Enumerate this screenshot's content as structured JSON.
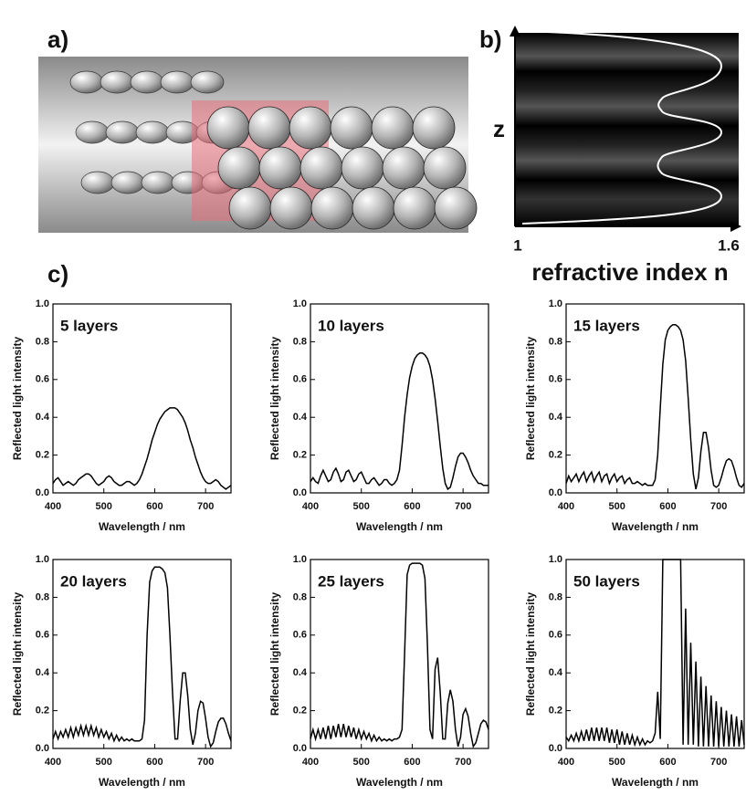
{
  "figure": {
    "panel_labels": [
      "a)",
      "b)",
      "c)"
    ],
    "index_profile": {
      "ylabel": "z",
      "xlabel": "refractive index n",
      "xticks": [
        1,
        1.6
      ]
    }
  },
  "chart_data": [
    {
      "type": "line",
      "annotation": "5 layers",
      "xlabel": "Wavelength / nm",
      "ylabel": "Reflected light intensity",
      "xlim": [
        400,
        750
      ],
      "ylim": [
        0,
        1
      ],
      "xticks": [
        400,
        500,
        600,
        700
      ],
      "yticks": [
        {
          "value": 0,
          "label": "0.0"
        },
        0.2,
        0.4,
        0.6,
        0.8,
        {
          "value": 1,
          "label": "1.0"
        }
      ],
      "color": "#000000",
      "x": [
        400,
        405,
        410,
        415,
        420,
        425,
        430,
        435,
        440,
        445,
        450,
        455,
        460,
        465,
        470,
        475,
        480,
        485,
        490,
        495,
        500,
        505,
        510,
        515,
        520,
        525,
        530,
        535,
        540,
        545,
        550,
        555,
        560,
        565,
        570,
        575,
        580,
        585,
        590,
        595,
        600,
        605,
        610,
        615,
        620,
        625,
        630,
        635,
        640,
        645,
        650,
        655,
        660,
        665,
        670,
        675,
        680,
        685,
        690,
        695,
        700,
        705,
        710,
        715,
        720,
        725,
        730,
        735,
        740,
        745,
        750
      ],
      "values": [
        0.05,
        0.07,
        0.08,
        0.06,
        0.04,
        0.05,
        0.06,
        0.05,
        0.04,
        0.05,
        0.07,
        0.08,
        0.09,
        0.1,
        0.1,
        0.09,
        0.07,
        0.05,
        0.04,
        0.05,
        0.06,
        0.08,
        0.09,
        0.08,
        0.06,
        0.05,
        0.04,
        0.04,
        0.05,
        0.06,
        0.06,
        0.05,
        0.04,
        0.05,
        0.07,
        0.1,
        0.14,
        0.18,
        0.23,
        0.28,
        0.32,
        0.36,
        0.39,
        0.41,
        0.43,
        0.44,
        0.45,
        0.45,
        0.45,
        0.44,
        0.42,
        0.4,
        0.37,
        0.33,
        0.28,
        0.24,
        0.19,
        0.15,
        0.11,
        0.08,
        0.06,
        0.05,
        0.05,
        0.06,
        0.07,
        0.06,
        0.04,
        0.03,
        0.02,
        0.03,
        0.04
      ]
    },
    {
      "type": "line",
      "annotation": "10 layers",
      "xlabel": "Wavelength / nm",
      "ylabel": "Reflected light intensity",
      "xlim": [
        400,
        750
      ],
      "ylim": [
        0,
        1
      ],
      "xticks": [
        400,
        500,
        600,
        700
      ],
      "yticks": [
        {
          "value": 0,
          "label": "0.0"
        },
        0.2,
        0.4,
        0.6,
        0.8,
        {
          "value": 1,
          "label": "1.0"
        }
      ],
      "color": "#000000",
      "x": [
        400,
        405,
        410,
        415,
        420,
        425,
        430,
        435,
        440,
        445,
        450,
        455,
        460,
        465,
        470,
        475,
        480,
        485,
        490,
        495,
        500,
        505,
        510,
        515,
        520,
        525,
        530,
        535,
        540,
        545,
        550,
        555,
        560,
        565,
        570,
        575,
        580,
        585,
        590,
        595,
        600,
        605,
        610,
        615,
        620,
        625,
        630,
        635,
        640,
        645,
        650,
        655,
        660,
        665,
        670,
        675,
        680,
        685,
        690,
        695,
        700,
        705,
        710,
        715,
        720,
        725,
        730,
        735,
        740,
        745,
        750
      ],
      "values": [
        0.06,
        0.08,
        0.06,
        0.05,
        0.09,
        0.12,
        0.09,
        0.06,
        0.07,
        0.11,
        0.13,
        0.1,
        0.06,
        0.07,
        0.11,
        0.12,
        0.09,
        0.06,
        0.07,
        0.1,
        0.11,
        0.08,
        0.05,
        0.05,
        0.07,
        0.08,
        0.06,
        0.04,
        0.05,
        0.07,
        0.07,
        0.05,
        0.04,
        0.05,
        0.07,
        0.12,
        0.25,
        0.4,
        0.52,
        0.61,
        0.67,
        0.71,
        0.73,
        0.74,
        0.74,
        0.73,
        0.71,
        0.67,
        0.6,
        0.5,
        0.38,
        0.25,
        0.13,
        0.05,
        0.02,
        0.03,
        0.08,
        0.14,
        0.19,
        0.21,
        0.21,
        0.19,
        0.16,
        0.12,
        0.09,
        0.07,
        0.05,
        0.05,
        0.04,
        0.04,
        0.04
      ]
    },
    {
      "type": "line",
      "annotation": "15 layers",
      "xlabel": "Wavelength / nm",
      "ylabel": "Reflected light intensity",
      "xlim": [
        400,
        750
      ],
      "ylim": [
        0,
        1
      ],
      "xticks": [
        400,
        500,
        600,
        700
      ],
      "yticks": [
        {
          "value": 0,
          "label": "0.0"
        },
        0.2,
        0.4,
        0.6,
        0.8,
        {
          "value": 1,
          "label": "1.0"
        }
      ],
      "color": "#000000",
      "x": [
        400,
        405,
        410,
        415,
        420,
        425,
        430,
        435,
        440,
        445,
        450,
        455,
        460,
        465,
        470,
        475,
        480,
        485,
        490,
        495,
        500,
        505,
        510,
        515,
        520,
        525,
        530,
        535,
        540,
        545,
        550,
        555,
        560,
        565,
        570,
        575,
        580,
        585,
        590,
        595,
        600,
        605,
        610,
        615,
        620,
        625,
        630,
        635,
        640,
        645,
        650,
        655,
        660,
        665,
        670,
        675,
        680,
        685,
        690,
        695,
        700,
        705,
        710,
        715,
        720,
        725,
        730,
        735,
        740,
        745,
        750
      ],
      "values": [
        0.05,
        0.09,
        0.06,
        0.08,
        0.1,
        0.06,
        0.09,
        0.11,
        0.06,
        0.09,
        0.11,
        0.06,
        0.09,
        0.11,
        0.06,
        0.09,
        0.1,
        0.05,
        0.08,
        0.1,
        0.06,
        0.08,
        0.09,
        0.05,
        0.07,
        0.08,
        0.05,
        0.05,
        0.06,
        0.05,
        0.04,
        0.05,
        0.04,
        0.04,
        0.04,
        0.07,
        0.2,
        0.45,
        0.68,
        0.81,
        0.86,
        0.88,
        0.89,
        0.89,
        0.88,
        0.86,
        0.81,
        0.7,
        0.5,
        0.28,
        0.1,
        0.02,
        0.08,
        0.22,
        0.32,
        0.32,
        0.24,
        0.12,
        0.04,
        0.03,
        0.04,
        0.08,
        0.13,
        0.17,
        0.18,
        0.17,
        0.13,
        0.08,
        0.04,
        0.03,
        0.05
      ]
    },
    {
      "type": "line",
      "annotation": "20 layers",
      "xlabel": "Wavelength / nm",
      "ylabel": "Reflected light intensity",
      "xlim": [
        400,
        750
      ],
      "ylim": [
        0,
        1
      ],
      "xticks": [
        400,
        500,
        600,
        700
      ],
      "yticks": [
        {
          "value": 0,
          "label": "0.0"
        },
        0.2,
        0.4,
        0.6,
        0.8,
        {
          "value": 1,
          "label": "1.0"
        }
      ],
      "color": "#000000",
      "x": [
        400,
        405,
        410,
        415,
        420,
        425,
        430,
        435,
        440,
        445,
        450,
        455,
        460,
        465,
        470,
        475,
        480,
        485,
        490,
        495,
        500,
        505,
        510,
        515,
        520,
        525,
        530,
        535,
        540,
        545,
        550,
        555,
        560,
        565,
        570,
        575,
        580,
        585,
        590,
        595,
        600,
        605,
        610,
        615,
        620,
        625,
        630,
        635,
        640,
        645,
        650,
        655,
        660,
        665,
        670,
        675,
        680,
        685,
        690,
        695,
        700,
        705,
        710,
        715,
        720,
        725,
        730,
        735,
        740,
        745,
        750
      ],
      "values": [
        0.05,
        0.09,
        0.05,
        0.09,
        0.06,
        0.1,
        0.06,
        0.11,
        0.06,
        0.11,
        0.07,
        0.12,
        0.07,
        0.12,
        0.07,
        0.12,
        0.07,
        0.11,
        0.06,
        0.1,
        0.06,
        0.09,
        0.05,
        0.08,
        0.04,
        0.07,
        0.04,
        0.06,
        0.04,
        0.05,
        0.04,
        0.05,
        0.04,
        0.04,
        0.04,
        0.05,
        0.15,
        0.6,
        0.88,
        0.94,
        0.96,
        0.96,
        0.96,
        0.95,
        0.93,
        0.85,
        0.6,
        0.3,
        0.05,
        0.05,
        0.25,
        0.4,
        0.4,
        0.28,
        0.1,
        0.02,
        0.08,
        0.2,
        0.25,
        0.24,
        0.16,
        0.06,
        0.01,
        0.03,
        0.09,
        0.14,
        0.16,
        0.16,
        0.13,
        0.08,
        0.04
      ]
    },
    {
      "type": "line",
      "annotation": "25 layers",
      "xlabel": "Wavelength / nm",
      "ylabel": "Reflected light intensity",
      "xlim": [
        400,
        750
      ],
      "ylim": [
        0,
        1
      ],
      "xticks": [
        400,
        500,
        600,
        700
      ],
      "yticks": [
        {
          "value": 0,
          "label": "0.0"
        },
        0.2,
        0.4,
        0.6,
        0.8,
        {
          "value": 1,
          "label": "1.0"
        }
      ],
      "color": "#000000",
      "x": [
        400,
        405,
        410,
        415,
        420,
        425,
        430,
        435,
        440,
        445,
        450,
        455,
        460,
        465,
        470,
        475,
        480,
        485,
        490,
        495,
        500,
        505,
        510,
        515,
        520,
        525,
        530,
        535,
        540,
        545,
        550,
        555,
        560,
        565,
        570,
        575,
        580,
        585,
        590,
        595,
        600,
        605,
        610,
        615,
        620,
        625,
        630,
        635,
        640,
        645,
        650,
        655,
        660,
        665,
        670,
        675,
        680,
        685,
        690,
        695,
        700,
        705,
        710,
        715,
        720,
        725,
        730,
        735,
        740,
        745,
        750
      ],
      "values": [
        0.05,
        0.1,
        0.05,
        0.1,
        0.05,
        0.11,
        0.05,
        0.12,
        0.05,
        0.12,
        0.06,
        0.13,
        0.06,
        0.13,
        0.06,
        0.12,
        0.06,
        0.11,
        0.05,
        0.1,
        0.05,
        0.09,
        0.05,
        0.08,
        0.04,
        0.07,
        0.04,
        0.06,
        0.04,
        0.05,
        0.04,
        0.05,
        0.04,
        0.05,
        0.05,
        0.06,
        0.1,
        0.5,
        0.92,
        0.97,
        0.98,
        0.98,
        0.98,
        0.98,
        0.97,
        0.9,
        0.55,
        0.1,
        0.05,
        0.42,
        0.48,
        0.3,
        0.05,
        0.05,
        0.24,
        0.31,
        0.25,
        0.1,
        0.01,
        0.06,
        0.18,
        0.21,
        0.17,
        0.08,
        0.01,
        0.03,
        0.08,
        0.13,
        0.15,
        0.14,
        0.1
      ]
    },
    {
      "type": "line",
      "annotation": "50 layers",
      "xlabel": "Wavelength / nm",
      "ylabel": "Reflected light intensity",
      "xlim": [
        400,
        750
      ],
      "ylim": [
        0,
        1
      ],
      "xticks": [
        400,
        500,
        600,
        700
      ],
      "yticks": [
        {
          "value": 0,
          "label": "0.0"
        },
        0.2,
        0.4,
        0.6,
        0.8,
        {
          "value": 1,
          "label": "1.0"
        }
      ],
      "color": "#000000",
      "x": [
        400,
        405,
        410,
        415,
        420,
        425,
        430,
        435,
        440,
        445,
        450,
        455,
        460,
        465,
        470,
        475,
        480,
        485,
        490,
        495,
        500,
        505,
        510,
        515,
        520,
        525,
        530,
        535,
        540,
        545,
        550,
        555,
        560,
        565,
        570,
        575,
        580,
        585,
        590,
        595,
        600,
        605,
        610,
        615,
        620,
        625,
        630,
        635,
        640,
        645,
        650,
        655,
        660,
        665,
        670,
        675,
        680,
        685,
        690,
        695,
        700,
        705,
        710,
        715,
        720,
        725,
        730,
        735,
        740,
        745,
        750
      ],
      "values": [
        0.06,
        0.04,
        0.07,
        0.04,
        0.08,
        0.04,
        0.09,
        0.04,
        0.1,
        0.04,
        0.11,
        0.04,
        0.11,
        0.04,
        0.11,
        0.04,
        0.11,
        0.03,
        0.1,
        0.03,
        0.1,
        0.02,
        0.09,
        0.02,
        0.08,
        0.02,
        0.07,
        0.02,
        0.06,
        0.02,
        0.05,
        0.02,
        0.04,
        0.03,
        0.04,
        0.08,
        0.3,
        0.05,
        1.0,
        1.0,
        1.0,
        1.0,
        1.0,
        1.0,
        1.0,
        1.0,
        0.02,
        0.74,
        0.02,
        0.56,
        0.02,
        0.46,
        0.01,
        0.38,
        0.01,
        0.33,
        0.01,
        0.28,
        0.01,
        0.25,
        0.01,
        0.22,
        0.01,
        0.2,
        0.01,
        0.18,
        0.01,
        0.17,
        0.01,
        0.15,
        0.02
      ]
    }
  ]
}
